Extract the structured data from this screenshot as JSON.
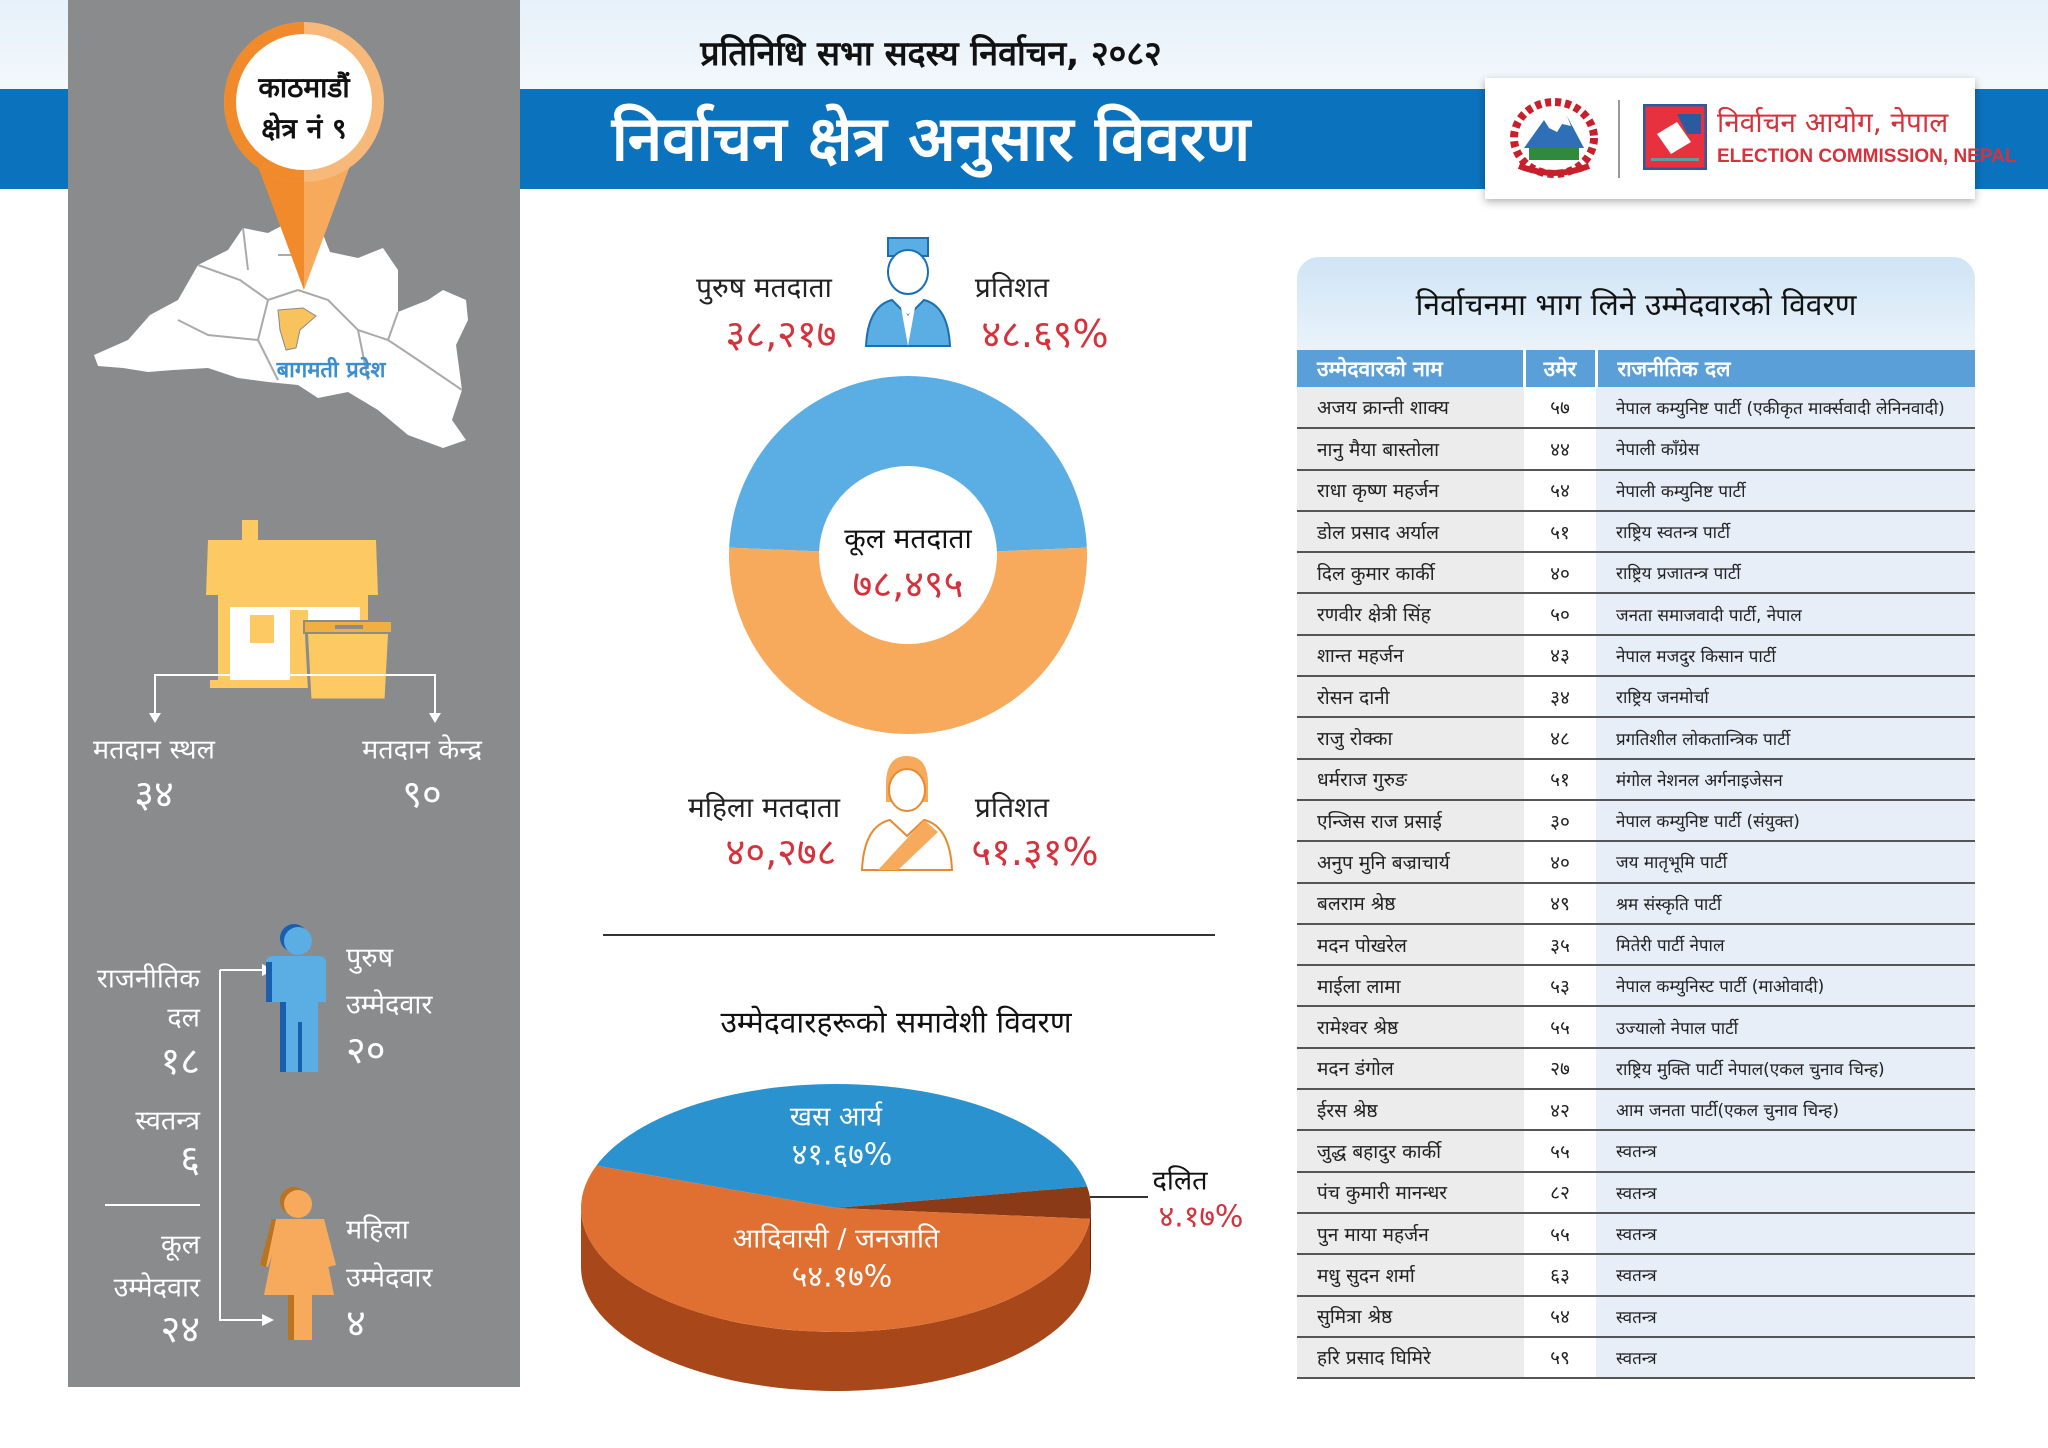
{
  "header": {
    "subtitle": "प्रतिनिधि सभा सदस्य निर्वाचन, २०८२",
    "title": "निर्वाचन क्षेत्र अनुसार विवरण",
    "logo": {
      "name_np": "निर्वाचन आयोग, नेपाल",
      "name_en": "ELECTION COMMISSION, NEPAL"
    }
  },
  "constituency": {
    "line1": "काठमाडौं",
    "line2": "क्षेत्र नं ९",
    "province": "बागमती प्रदेश"
  },
  "polling": {
    "sites_label": "मतदान स्थल",
    "sites": "३४",
    "centers_label": "मतदान केन्द्र",
    "centers": "९०"
  },
  "candidates_summary": {
    "party_label1": "राजनीतिक",
    "party_label2": "दल",
    "party_count": "१८",
    "independent_label": "स्वतन्त्र",
    "independent_count": "६",
    "total_label1": "कूल",
    "total_label2": "उम्मेदवार",
    "total_count": "२४",
    "male_label1": "पुरुष",
    "male_label2": "उम्मेदवार",
    "male_count": "२०",
    "female_label1": "महिला",
    "female_label2": "उम्मेदवार",
    "female_count": "४"
  },
  "voters": {
    "male_label": "पुरुष मतदाता",
    "male_count": "३८,२१७",
    "percent_label": "प्रतिशत",
    "male_percent": "४८.६९%",
    "female_label": "महिला मतदाता",
    "female_count": "४०,२७८",
    "female_percent": "५१.३१%",
    "total_label": "कूल मतदाता",
    "total_count": "७८,४९५"
  },
  "colors": {
    "blue": "#0b72bd",
    "male": "#5aaee3",
    "female": "#f7a95c",
    "red": "#d6323c",
    "khas": "#2a93cf",
    "adibasi": "#e07032",
    "dalit": "#8a3a16"
  },
  "chart_data": [
    {
      "type": "pie",
      "subtype": "donut",
      "series": [
        {
          "name": "पुरुष मतदाता",
          "value": 48.69
        },
        {
          "name": "महिला मतदाता",
          "value": 51.31
        }
      ],
      "center_label": "कूल मतदाता",
      "center_value": "७८,४९५"
    },
    {
      "type": "pie",
      "subtype": "3d",
      "title": "उम्मेदवारहरूको समावेशी विवरण",
      "slices": [
        {
          "name": "खस आर्य",
          "label": "४१.६७%",
          "value": 41.67
        },
        {
          "name": "दलित",
          "label": "४.१७%",
          "value": 4.17
        },
        {
          "name": "आदिवासी / जनजाति",
          "label": "५४.१७%",
          "value": 54.17
        }
      ]
    }
  ],
  "table": {
    "title": "निर्वाचनमा भाग लिने उम्मेदवारको विवरण",
    "columns": [
      "उम्मेदवारको नाम",
      "उमेर",
      "राजनीतिक दल"
    ],
    "rows": [
      [
        "अजय क्रान्ती शाक्य",
        "५७",
        "नेपाल कम्युनिष्ट पार्टी (एकीकृत मार्क्सवादी लेनिनवादी)"
      ],
      [
        "नानु मैया बास्तोला",
        "४४",
        "नेपाली काँग्रेस"
      ],
      [
        "राधा कृष्ण महर्जन",
        "५४",
        "नेपाली कम्युनिष्ट पार्टी"
      ],
      [
        "डोल प्रसाद अर्याल",
        "५१",
        "राष्ट्रिय स्वतन्त्र पार्टी"
      ],
      [
        "दिल कुमार कार्की",
        "४०",
        "राष्ट्रिय प्रजातन्त्र पार्टी"
      ],
      [
        "रणवीर क्षेत्री सिंह",
        "५०",
        "जनता समाजवादी पार्टी, नेपाल"
      ],
      [
        "शान्त महर्जन",
        "४३",
        "नेपाल मजदुर किसान पार्टी"
      ],
      [
        "रोसन दानी",
        "३४",
        "राष्ट्रिय जनमोर्चा"
      ],
      [
        "राजु रोक्का",
        "४८",
        "प्रगतिशील लोकतान्त्रिक पार्टी"
      ],
      [
        "धर्मराज गुरुङ",
        "५१",
        "मंगोल नेशनल अर्गनाइजेसन"
      ],
      [
        "एन्जिस राज प्रसाई",
        "३०",
        "नेपाल कम्युनिष्ट पार्टी (संयुक्त)"
      ],
      [
        "अनुप मुनि बज्राचार्य",
        "४०",
        "जय मातृभूमि पार्टी"
      ],
      [
        "बलराम श्रेष्ठ",
        "४९",
        "श्रम संस्कृति पार्टी"
      ],
      [
        "मदन पोखरेल",
        "३५",
        "मितेरी पार्टी नेपाल"
      ],
      [
        "माईला लामा",
        "५३",
        "नेपाल कम्युनिस्ट पार्टी (माओवादी)"
      ],
      [
        "रामेश्वर श्रेष्ठ",
        "५५",
        "उज्यालो नेपाल पार्टी"
      ],
      [
        "मदन डंगोल",
        "२७",
        "राष्ट्रिय मुक्ति पार्टी नेपाल(एकल चुनाव चिन्ह)"
      ],
      [
        "ईरस श्रेष्ठ",
        "४२",
        "आम जनता पार्टी(एकल चुनाव चिन्ह)"
      ],
      [
        "जुद्ध बहादुर कार्की",
        "५५",
        "स्वतन्त्र"
      ],
      [
        "पंच कुमारी मानन्धर",
        "८२",
        "स्वतन्त्र"
      ],
      [
        "पुन माया महर्जन",
        "५५",
        "स्वतन्त्र"
      ],
      [
        "मधु सुदन शर्मा",
        "६३",
        "स्वतन्त्र"
      ],
      [
        "सुमित्रा श्रेष्ठ",
        "५४",
        "स्वतन्त्र"
      ],
      [
        "हरि प्रसाद घिमिरे",
        "५९",
        "स्वतन्त्र"
      ]
    ]
  }
}
